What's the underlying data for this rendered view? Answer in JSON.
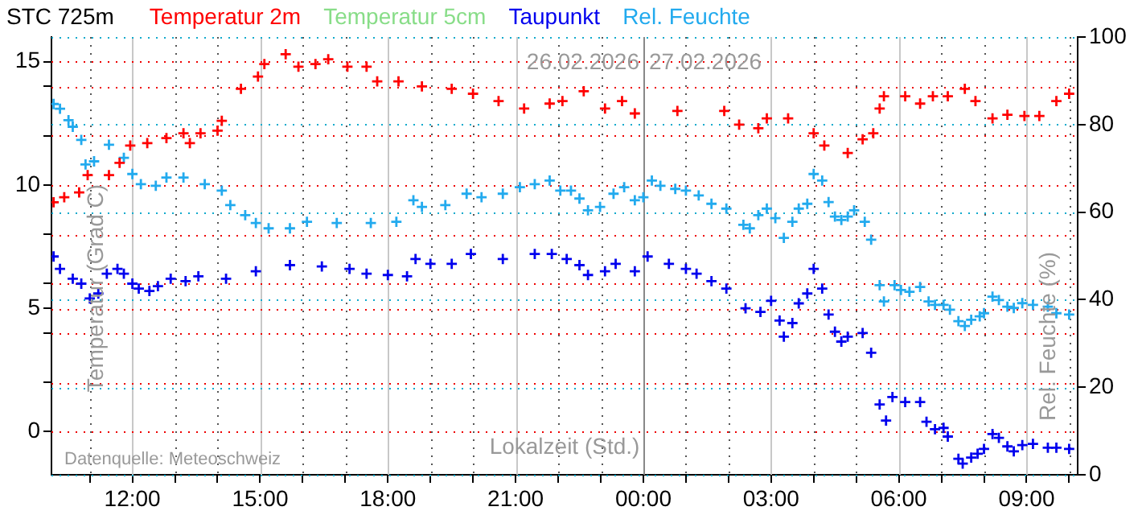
{
  "chart_data": {
    "type": "scatter",
    "title": "STC 725m",
    "xlabel": "Lokalzeit (Std.)",
    "ylabel": "Temperatur (Grad C)",
    "y2label": "Rel. Feuchte (%)",
    "xlim": [
      "2026-02-26T10:06",
      "2026-02-27T10:12"
    ],
    "xticks": [
      {
        "value": "2026-02-26T11:00",
        "label": null
      },
      {
        "value": "2026-02-26T12:00",
        "label": "12:00"
      },
      {
        "value": "2026-02-26T13:00",
        "label": null
      },
      {
        "value": "2026-02-26T14:00",
        "label": null
      },
      {
        "value": "2026-02-26T15:00",
        "label": "15:00"
      },
      {
        "value": "2026-02-26T16:00",
        "label": null
      },
      {
        "value": "2026-02-26T17:00",
        "label": null
      },
      {
        "value": "2026-02-26T18:00",
        "label": "18:00"
      },
      {
        "value": "2026-02-26T19:00",
        "label": null
      },
      {
        "value": "2026-02-26T20:00",
        "label": null
      },
      {
        "value": "2026-02-26T21:00",
        "label": "21:00"
      },
      {
        "value": "2026-02-26T22:00",
        "label": null
      },
      {
        "value": "2026-02-26T23:00",
        "label": null
      },
      {
        "value": "2026-02-27T00:00",
        "label": "00:00"
      },
      {
        "value": "2026-02-27T01:00",
        "label": null
      },
      {
        "value": "2026-02-27T02:00",
        "label": null
      },
      {
        "value": "2026-02-27T03:00",
        "label": "03:00"
      },
      {
        "value": "2026-02-27T04:00",
        "label": null
      },
      {
        "value": "2026-02-27T05:00",
        "label": null
      },
      {
        "value": "2026-02-27T06:00",
        "label": "06:00"
      },
      {
        "value": "2026-02-27T07:00",
        "label": null
      },
      {
        "value": "2026-02-27T08:00",
        "label": null
      },
      {
        "value": "2026-02-27T09:00",
        "label": "09:00"
      },
      {
        "value": "2026-02-27T10:00",
        "label": null
      }
    ],
    "ylim": [
      -1.75,
      16
    ],
    "yticks": [
      0,
      {
        "value": 2,
        "label": null
      },
      {
        "value": 4,
        "label": null
      },
      5,
      {
        "value": 6,
        "label": null
      },
      {
        "value": 8,
        "label": null
      },
      10,
      {
        "value": 12,
        "label": null
      },
      {
        "value": 14,
        "label": null
      },
      15
    ],
    "y2lim": [
      0,
      100
    ],
    "y2ticks": [
      0,
      20,
      40,
      60,
      80,
      100
    ],
    "grid": true,
    "legend": "top",
    "marker": "cross",
    "ref_lines": [
      {
        "axis": "x",
        "value": "2026-02-27T00:00",
        "label": "26.02.2026",
        "color": "#888888"
      }
    ],
    "annotations": [
      {
        "text": "27.02.2026",
        "x": "2026-02-27T00:00"
      },
      "Datenquelle: Meteoschweiz"
    ],
    "series": [
      {
        "name": "Temperatur 2m",
        "color": "#ff0000",
        "x": [
          "2026-02-26T10:09",
          "2026-02-26T10:24",
          "2026-02-26T10:45",
          "2026-02-26T10:57",
          "2026-02-26T11:27",
          "2026-02-26T11:42",
          "2026-02-26T11:57",
          "2026-02-26T12:21",
          "2026-02-26T12:48",
          "2026-02-26T13:12",
          "2026-02-26T13:21",
          "2026-02-26T13:36",
          "2026-02-26T14:00",
          "2026-02-26T14:06",
          "2026-02-26T14:33",
          "2026-02-26T14:57",
          "2026-02-26T15:06",
          "2026-02-26T15:36",
          "2026-02-26T15:54",
          "2026-02-26T16:18",
          "2026-02-26T16:36",
          "2026-02-26T17:03",
          "2026-02-26T17:30",
          "2026-02-26T17:45",
          "2026-02-26T18:15",
          "2026-02-26T18:48",
          "2026-02-26T19:30",
          "2026-02-26T20:00",
          "2026-02-26T20:36",
          "2026-02-26T21:12",
          "2026-02-26T21:48",
          "2026-02-26T22:06",
          "2026-02-26T22:36",
          "2026-02-26T23:06",
          "2026-02-26T23:30",
          "2026-02-26T23:48",
          "2026-02-27T00:48",
          "2026-02-27T01:54",
          "2026-02-27T02:15",
          "2026-02-27T02:42",
          "2026-02-27T02:54",
          "2026-02-27T03:24",
          "2026-02-27T04:00",
          "2026-02-27T04:15",
          "2026-02-27T04:48",
          "2026-02-27T05:09",
          "2026-02-27T05:24",
          "2026-02-27T05:33",
          "2026-02-27T05:39",
          "2026-02-27T06:09",
          "2026-02-27T06:30",
          "2026-02-27T06:48",
          "2026-02-27T07:09",
          "2026-02-27T07:33",
          "2026-02-27T07:48",
          "2026-02-27T08:12",
          "2026-02-27T08:33",
          "2026-02-27T08:57",
          "2026-02-27T09:18",
          "2026-02-27T09:42",
          "2026-02-27T10:00"
        ],
        "values": [
          9.3,
          9.5,
          9.7,
          10.4,
          10.4,
          10.9,
          11.6,
          11.7,
          11.9,
          12.1,
          11.7,
          12.1,
          12.2,
          12.6,
          13.9,
          14.4,
          14.9,
          15.3,
          14.8,
          14.9,
          15.1,
          14.8,
          14.8,
          14.2,
          14.2,
          14.0,
          13.9,
          13.7,
          13.4,
          13.1,
          13.3,
          13.4,
          13.8,
          13.1,
          13.4,
          12.9,
          13.0,
          13.0,
          12.45,
          12.3,
          12.7,
          12.7,
          12.1,
          11.6,
          11.3,
          11.85,
          12.1,
          13.1,
          13.6,
          13.6,
          13.3,
          13.6,
          13.6,
          13.9,
          13.4,
          12.7,
          12.85,
          12.8,
          12.8,
          13.4,
          13.7
        ]
      },
      {
        "name": "Temperatur 5cm",
        "color": "#88dd88"
      },
      {
        "name": "Taupunkt",
        "color": "#0000ee",
        "x": [
          "2026-02-26T10:09",
          "2026-02-26T10:18",
          "2026-02-26T10:36",
          "2026-02-26T10:48",
          "2026-02-26T11:00",
          "2026-02-26T11:12",
          "2026-02-26T11:24",
          "2026-02-26T11:39",
          "2026-02-26T11:48",
          "2026-02-26T12:00",
          "2026-02-26T12:09",
          "2026-02-26T12:24",
          "2026-02-26T12:36",
          "2026-02-26T12:54",
          "2026-02-26T13:15",
          "2026-02-26T13:33",
          "2026-02-26T14:12",
          "2026-02-26T14:54",
          "2026-02-26T15:42",
          "2026-02-26T16:27",
          "2026-02-26T17:06",
          "2026-02-26T17:30",
          "2026-02-26T18:00",
          "2026-02-26T18:27",
          "2026-02-26T18:39",
          "2026-02-26T19:00",
          "2026-02-26T19:30",
          "2026-02-26T19:57",
          "2026-02-26T20:42",
          "2026-02-26T21:27",
          "2026-02-26T21:51",
          "2026-02-26T22:12",
          "2026-02-26T22:30",
          "2026-02-26T22:42",
          "2026-02-26T23:06",
          "2026-02-26T23:21",
          "2026-02-26T23:48",
          "2026-02-27T00:06",
          "2026-02-27T00:36",
          "2026-02-27T01:00",
          "2026-02-27T01:15",
          "2026-02-27T01:36",
          "2026-02-27T01:57",
          "2026-02-27T02:24",
          "2026-02-27T02:45",
          "2026-02-27T03:00",
          "2026-02-27T03:12",
          "2026-02-27T03:18",
          "2026-02-27T03:30",
          "2026-02-27T03:39",
          "2026-02-27T03:51",
          "2026-02-27T04:00",
          "2026-02-27T04:12",
          "2026-02-27T04:21",
          "2026-02-27T04:30",
          "2026-02-27T04:39",
          "2026-02-27T04:48",
          "2026-02-27T05:09",
          "2026-02-27T05:21",
          "2026-02-27T05:33",
          "2026-02-27T05:42",
          "2026-02-27T05:51",
          "2026-02-27T06:09",
          "2026-02-27T06:30",
          "2026-02-27T06:39",
          "2026-02-27T06:51",
          "2026-02-27T07:03",
          "2026-02-27T07:09",
          "2026-02-27T07:24",
          "2026-02-27T07:30",
          "2026-02-27T07:42",
          "2026-02-27T07:51",
          "2026-02-27T08:00",
          "2026-02-27T08:12",
          "2026-02-27T08:21",
          "2026-02-27T08:33",
          "2026-02-27T08:42",
          "2026-02-27T08:54",
          "2026-02-27T09:09",
          "2026-02-27T09:30",
          "2026-02-27T09:42",
          "2026-02-27T10:00"
        ],
        "values": [
          7.1,
          6.6,
          6.2,
          6.0,
          5.4,
          5.6,
          6.4,
          6.6,
          6.4,
          6.0,
          5.8,
          5.7,
          5.9,
          6.2,
          6.1,
          6.3,
          6.2,
          6.5,
          6.75,
          6.7,
          6.6,
          6.4,
          6.35,
          6.3,
          7.0,
          6.8,
          6.8,
          7.2,
          7.0,
          7.2,
          7.2,
          7.0,
          6.75,
          6.35,
          6.5,
          6.8,
          6.5,
          7.1,
          6.8,
          6.6,
          6.4,
          6.1,
          5.8,
          5.0,
          4.85,
          5.3,
          4.5,
          3.85,
          4.4,
          5.2,
          5.6,
          6.6,
          5.8,
          4.75,
          4.05,
          3.65,
          3.85,
          4.0,
          3.2,
          1.1,
          0.45,
          1.4,
          1.2,
          1.2,
          0.4,
          0.1,
          0.15,
          -0.2,
          -1.1,
          -1.3,
          -1.05,
          -0.9,
          -0.7,
          -0.1,
          -0.25,
          -0.6,
          -0.8,
          -0.55,
          -0.5,
          -0.65,
          -0.65,
          -0.7
        ]
      },
      {
        "name": "Rel. Feuchte",
        "color": "#22aaee",
        "axis": "y2",
        "x": [
          "2026-02-26T10:09",
          "2026-02-26T10:18",
          "2026-02-26T10:30",
          "2026-02-26T10:36",
          "2026-02-26T10:48",
          "2026-02-26T10:54",
          "2026-02-26T11:06",
          "2026-02-26T11:27",
          "2026-02-26T11:48",
          "2026-02-26T12:00",
          "2026-02-26T12:12",
          "2026-02-26T12:33",
          "2026-02-26T12:48",
          "2026-02-26T13:12",
          "2026-02-26T13:42",
          "2026-02-26T14:06",
          "2026-02-26T14:18",
          "2026-02-26T14:39",
          "2026-02-26T14:54",
          "2026-02-26T15:12",
          "2026-02-26T15:42",
          "2026-02-26T16:06",
          "2026-02-26T16:48",
          "2026-02-26T17:36",
          "2026-02-26T18:12",
          "2026-02-26T18:36",
          "2026-02-26T18:48",
          "2026-02-26T19:21",
          "2026-02-26T19:51",
          "2026-02-26T20:12",
          "2026-02-26T20:42",
          "2026-02-26T21:06",
          "2026-02-26T21:27",
          "2026-02-26T21:48",
          "2026-02-26T22:03",
          "2026-02-26T22:18",
          "2026-02-26T22:30",
          "2026-02-26T22:42",
          "2026-02-26T22:59",
          "2026-02-26T23:18",
          "2026-02-26T23:33",
          "2026-02-26T23:48",
          "2026-02-27T00:00",
          "2026-02-27T00:12",
          "2026-02-27T00:24",
          "2026-02-27T00:45",
          "2026-02-27T01:00",
          "2026-02-27T01:18",
          "2026-02-27T01:36",
          "2026-02-27T01:57",
          "2026-02-27T02:21",
          "2026-02-27T02:30",
          "2026-02-27T02:42",
          "2026-02-27T02:54",
          "2026-02-27T03:06",
          "2026-02-27T03:18",
          "2026-02-27T03:30",
          "2026-02-27T03:39",
          "2026-02-27T03:51",
          "2026-02-27T04:00",
          "2026-02-27T04:12",
          "2026-02-27T04:21",
          "2026-02-27T04:30",
          "2026-02-27T04:39",
          "2026-02-27T04:48",
          "2026-02-27T04:57",
          "2026-02-27T05:12",
          "2026-02-27T05:21",
          "2026-02-27T05:33",
          "2026-02-27T05:39",
          "2026-02-27T05:54",
          "2026-02-27T06:03",
          "2026-02-27T06:15",
          "2026-02-27T06:30",
          "2026-02-27T06:42",
          "2026-02-27T06:51",
          "2026-02-27T07:03",
          "2026-02-27T07:12",
          "2026-02-27T07:24",
          "2026-02-27T07:33",
          "2026-02-27T07:42",
          "2026-02-27T07:54",
          "2026-02-27T08:00",
          "2026-02-27T08:12",
          "2026-02-27T08:21",
          "2026-02-27T08:33",
          "2026-02-27T08:42",
          "2026-02-27T08:54",
          "2026-02-27T09:09",
          "2026-02-27T09:30",
          "2026-02-27T09:42",
          "2026-02-27T10:00"
        ],
        "values": [
          84.7,
          83.6,
          81,
          79.5,
          76.5,
          70.9,
          71.6,
          75.4,
          72.4,
          68.7,
          66.4,
          66.0,
          67.9,
          67.9,
          66.4,
          64.9,
          61.6,
          59.3,
          57.5,
          56.3,
          56.3,
          57.8,
          57.5,
          57.5,
          57.8,
          62.7,
          61.2,
          61.6,
          64.2,
          63.4,
          64.2,
          65.7,
          66.4,
          67.2,
          64.9,
          64.9,
          63.1,
          60.4,
          61.2,
          64.2,
          65.7,
          62.7,
          63.4,
          67.2,
          66.0,
          65.3,
          64.9,
          63.8,
          61.9,
          60.8,
          57.1,
          56.3,
          59.3,
          60.8,
          58.6,
          54.1,
          57.8,
          60.8,
          61.9,
          68.7,
          67.2,
          62.3,
          59.0,
          58.2,
          59.0,
          60.4,
          57.8,
          53.7,
          43.3,
          39.6,
          43.3,
          42.2,
          41.8,
          42.9,
          39.6,
          38.8,
          38.8,
          37.7,
          35.1,
          34.0,
          35.4,
          36.2,
          36.9,
          40.7,
          39.9,
          38.4,
          38.1,
          39.2,
          38.8,
          38.4,
          36.9,
          36.6
        ]
      }
    ]
  }
}
